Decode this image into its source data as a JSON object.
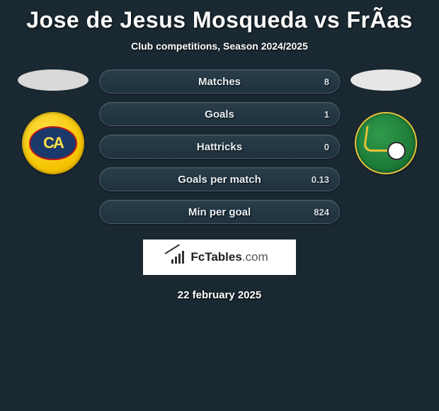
{
  "header": {
    "title": "Jose de Jesus Mosqueda vs FrÃ­as",
    "subtitle": "Club competitions, Season 2024/2025"
  },
  "players": {
    "left": {
      "name": "Jose de Jesus Mosqueda",
      "oval_color": "#d9d9d9",
      "club": "Club America",
      "club_colors": {
        "primary": "#f5c400",
        "secondary": "#1b3a6b",
        "accent": "#c21a1a"
      }
    },
    "right": {
      "name": "FrÃ­as",
      "oval_color": "#e6e6e6",
      "club": "Leon",
      "club_colors": {
        "primary": "#1d7a38",
        "secondary": "#eac23a",
        "ball": "#ffffff"
      }
    }
  },
  "stats": [
    {
      "label": "Matches",
      "right_value": "8"
    },
    {
      "label": "Goals",
      "right_value": "1"
    },
    {
      "label": "Hattricks",
      "right_value": "0"
    },
    {
      "label": "Goals per match",
      "right_value": "0.13"
    },
    {
      "label": "Min per goal",
      "right_value": "824"
    }
  ],
  "brand": {
    "name": "FcTables",
    "domain": ".com"
  },
  "date": "22 february 2025",
  "style": {
    "background": "#1a2832",
    "row_bg_top": "#2a3d4a",
    "row_bg_bottom": "#1f323e",
    "row_border": "#4a5d6a",
    "title_fontsize": 32,
    "subtitle_fontsize": 14,
    "stat_label_fontsize": 15,
    "stat_value_fontsize": 13,
    "brand_box_bg": "#ffffff",
    "brand_text_color": "#222222"
  }
}
